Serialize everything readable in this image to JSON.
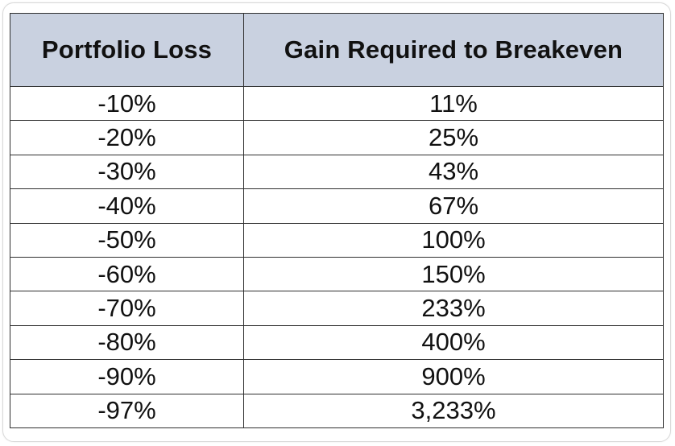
{
  "chart_data": {
    "type": "table",
    "columns": [
      "Portfolio Loss",
      "Gain Required to Breakeven"
    ],
    "rows": [
      [
        "-10%",
        "11%"
      ],
      [
        "-20%",
        "25%"
      ],
      [
        "-30%",
        "43%"
      ],
      [
        "-40%",
        "67%"
      ],
      [
        "-50%",
        "100%"
      ],
      [
        "-60%",
        "150%"
      ],
      [
        "-70%",
        "233%"
      ],
      [
        "-80%",
        "400%"
      ],
      [
        "-90%",
        "900%"
      ],
      [
        "-97%",
        "3,233%"
      ]
    ],
    "header_color": "#c9d1e0",
    "border_color": "#2f2f2f"
  }
}
